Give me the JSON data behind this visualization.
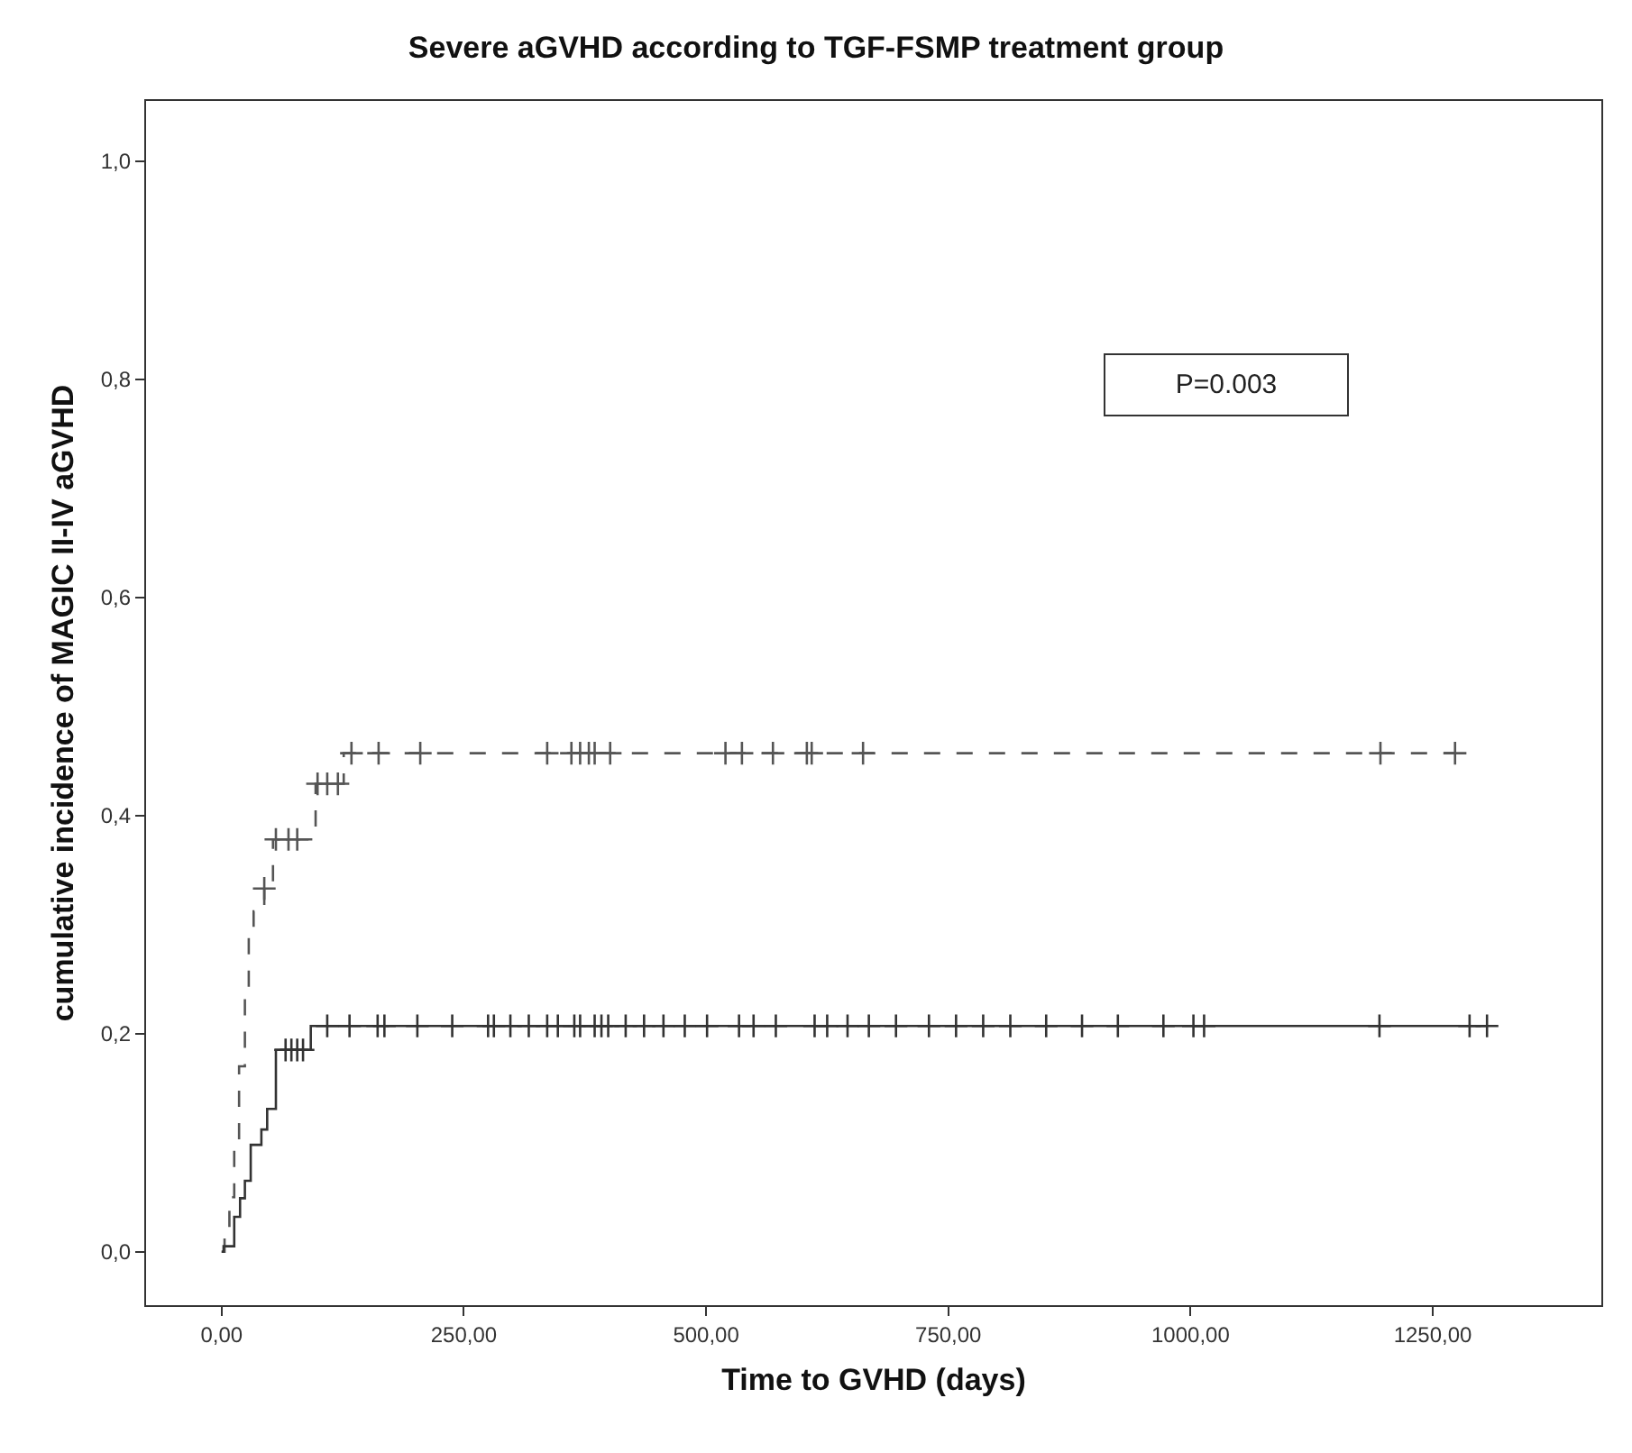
{
  "chart_data": {
    "type": "step",
    "title": "Severe aGVHD according to TGF-FSMP treatment group",
    "xlabel": "Time to GVHD (days)",
    "ylabel": "cumulative incidence of MAGIC II-IV aGVHD",
    "annotations": [
      "P=0.003"
    ],
    "xlim": [
      -78,
      1424
    ],
    "xticks": [
      {
        "value": 0,
        "label": "0,00"
      },
      {
        "value": 250,
        "label": "250,00"
      },
      {
        "value": 500,
        "label": "500,00"
      },
      {
        "value": 750,
        "label": "750,00"
      },
      {
        "value": 1000,
        "label": "1000,00"
      },
      {
        "value": 1250,
        "label": "1250,00"
      }
    ],
    "ylim": [
      -0.049,
      1.055
    ],
    "yticks": [
      {
        "value": 0,
        "label": "0,0"
      },
      {
        "value": 0.2,
        "label": "0,2"
      },
      {
        "value": 0.4,
        "label": "0,4"
      },
      {
        "value": 0.6,
        "label": "0,6"
      },
      {
        "value": 0.8,
        "label": "0,8"
      },
      {
        "value": 1.0,
        "label": "1,0"
      }
    ],
    "series": [
      {
        "line_style": "dashed",
        "marker": "none",
        "color": "#555555",
        "x": [
          0,
          3,
          8,
          13,
          18,
          24,
          28,
          33,
          44,
          53,
          97,
          126,
          1273
        ],
        "values": [
          0,
          0.02,
          0.05,
          0.1,
          0.17,
          0.236,
          0.291,
          0.312,
          0.333,
          0.378,
          0.429,
          0.457,
          0.457
        ]
      },
      {
        "type": "scatter",
        "marker": "cross",
        "color": "#555555",
        "x": [
          44,
          56,
          69,
          78,
          99,
          109,
          120,
          134,
          162,
          205,
          336,
          361,
          370,
          379,
          385,
          401,
          520,
          537,
          569,
          604,
          609,
          662,
          1196,
          1273
        ],
        "values": [
          0.333,
          0.378,
          0.378,
          0.378,
          0.429,
          0.429,
          0.429,
          0.457,
          0.457,
          0.457,
          0.457,
          0.457,
          0.457,
          0.457,
          0.457,
          0.457,
          0.457,
          0.457,
          0.457,
          0.457,
          0.457,
          0.457,
          0.457,
          0.457
        ]
      },
      {
        "line_style": "solid",
        "marker": "none",
        "color": "#333333",
        "x": [
          0,
          2,
          13,
          19,
          24,
          30,
          41,
          47,
          56,
          92,
          1306
        ],
        "values": [
          0,
          0.005,
          0.032,
          0.049,
          0.065,
          0.098,
          0.112,
          0.131,
          0.185,
          0.207,
          0.207
        ]
      },
      {
        "type": "scatter",
        "marker": "cross",
        "color": "#333333",
        "x": [
          66,
          72,
          78,
          84,
          109,
          132,
          161,
          168,
          202,
          238,
          275,
          281,
          298,
          317,
          336,
          347,
          364,
          370,
          385,
          392,
          399,
          417,
          436,
          456,
          478,
          501,
          534,
          549,
          572,
          612,
          625,
          646,
          668,
          696,
          730,
          758,
          786,
          814,
          851,
          888,
          925,
          972,
          1003,
          1014,
          1195,
          1288,
          1306
        ],
        "values": [
          0.185,
          0.185,
          0.185,
          0.185,
          0.207,
          0.207,
          0.207,
          0.207,
          0.207,
          0.207,
          0.207,
          0.207,
          0.207,
          0.207,
          0.207,
          0.207,
          0.207,
          0.207,
          0.207,
          0.207,
          0.207,
          0.207,
          0.207,
          0.207,
          0.207,
          0.207,
          0.207,
          0.207,
          0.207,
          0.207,
          0.207,
          0.207,
          0.207,
          0.207,
          0.207,
          0.207,
          0.207,
          0.207,
          0.207,
          0.207,
          0.207,
          0.207,
          0.207,
          0.207,
          0.207,
          0.207,
          0.207
        ]
      }
    ]
  }
}
